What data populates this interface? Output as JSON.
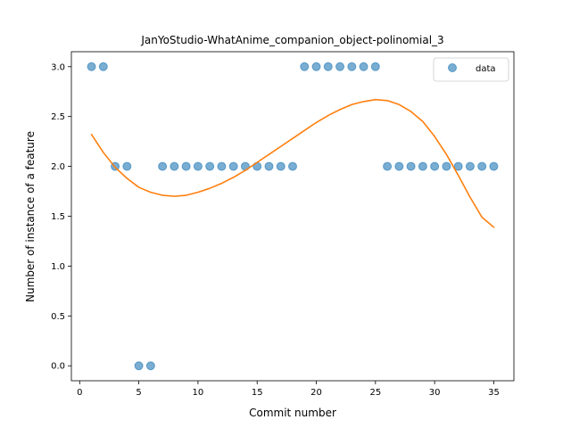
{
  "chart_data": {
    "type": "scatter",
    "title": "JanYoStudio-WhatAnime_companion_object-polinomial_3",
    "xlabel": "Commit number",
    "ylabel": "Number of instance of a feature",
    "xlim": [
      -0.7,
      36.7
    ],
    "ylim": [
      -0.15,
      3.15
    ],
    "xticks": [
      0,
      5,
      10,
      15,
      20,
      25,
      30,
      35
    ],
    "xtick_labels": [
      "0",
      "5",
      "10",
      "15",
      "20",
      "25",
      "30",
      "35"
    ],
    "yticks": [
      0.0,
      0.5,
      1.0,
      1.5,
      2.0,
      2.5,
      3.0
    ],
    "ytick_labels": [
      "0.0",
      "0.5",
      "1.0",
      "1.5",
      "2.0",
      "2.5",
      "3.0"
    ],
    "grid": false,
    "legend": {
      "position": "upper right",
      "entries": [
        "data"
      ]
    },
    "series": [
      {
        "name": "data",
        "kind": "scatter",
        "color": "#1f77b4",
        "x": [
          1,
          2,
          3,
          4,
          5,
          6,
          7,
          8,
          9,
          10,
          11,
          12,
          13,
          14,
          15,
          16,
          17,
          18,
          19,
          20,
          21,
          22,
          23,
          24,
          25,
          26,
          27,
          28,
          29,
          30,
          31,
          32,
          33,
          34,
          35
        ],
        "y": [
          3,
          3,
          2,
          2,
          0,
          0,
          2,
          2,
          2,
          2,
          2,
          2,
          2,
          2,
          2,
          2,
          2,
          2,
          3,
          3,
          3,
          3,
          3,
          3,
          3,
          2,
          2,
          2,
          2,
          2,
          2,
          2,
          2,
          2,
          2
        ]
      },
      {
        "kind": "line",
        "color": "#ff7f0e",
        "x": [
          1,
          2,
          3,
          4,
          5,
          6,
          7,
          8,
          9,
          10,
          11,
          12,
          13,
          14,
          15,
          16,
          17,
          18,
          19,
          20,
          21,
          22,
          23,
          24,
          25,
          26,
          27,
          28,
          29,
          30,
          31,
          32,
          33,
          34,
          35
        ],
        "y": [
          2.32,
          2.14,
          1.99,
          1.88,
          1.79,
          1.74,
          1.71,
          1.7,
          1.71,
          1.74,
          1.78,
          1.83,
          1.89,
          1.96,
          2.04,
          2.12,
          2.2,
          2.28,
          2.36,
          2.44,
          2.51,
          2.57,
          2.62,
          2.65,
          2.67,
          2.66,
          2.62,
          2.55,
          2.45,
          2.3,
          2.12,
          1.91,
          1.69,
          1.49,
          1.39
        ]
      }
    ]
  }
}
